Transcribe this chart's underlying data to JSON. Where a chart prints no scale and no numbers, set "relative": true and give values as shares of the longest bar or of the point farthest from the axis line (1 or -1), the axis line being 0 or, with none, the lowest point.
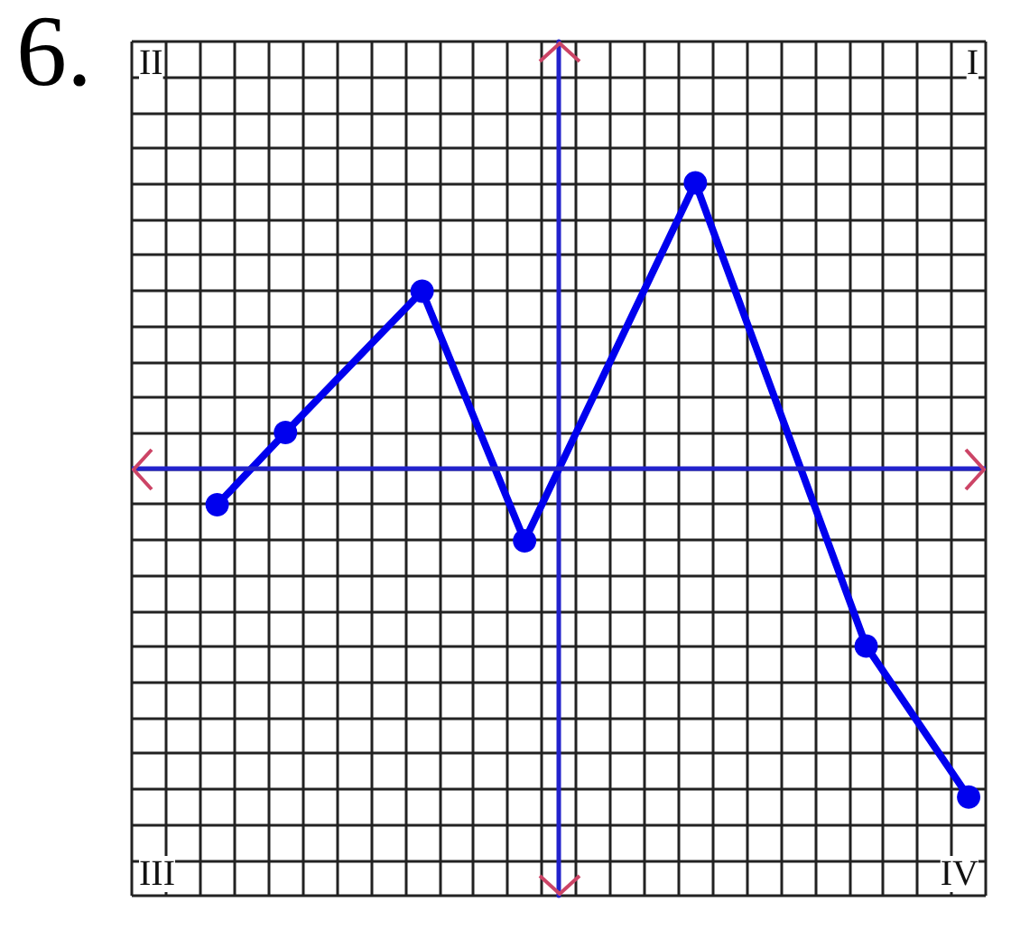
{
  "chart_data": {
    "type": "line",
    "title": "6.",
    "relative": true,
    "categories": [
      null,
      null,
      null,
      null,
      null,
      null,
      null,
      null,
      null,
      null,
      null,
      null,
      null,
      null,
      null,
      null,
      null,
      null,
      null,
      null,
      null,
      null,
      null,
      null,
      null
    ],
    "series": [
      {
        "color": "#0000ee",
        "values": [
          null,
          null,
          -0.11,
          null,
          0.11,
          null,
          null,
          null,
          0.54,
          null,
          null,
          -0.22,
          null,
          null,
          null,
          null,
          0.87,
          null,
          null,
          null,
          null,
          -0.54,
          null,
          null,
          -1
        ]
      }
    ],
    "ref_lines": [
      {
        "axis": "y",
        "value": 0,
        "color": "#2222cc"
      }
    ],
    "annotations": [
      "II",
      "I",
      "III",
      "IV"
    ],
    "grid": true,
    "marker": "circle",
    "line_style": "solid"
  }
}
